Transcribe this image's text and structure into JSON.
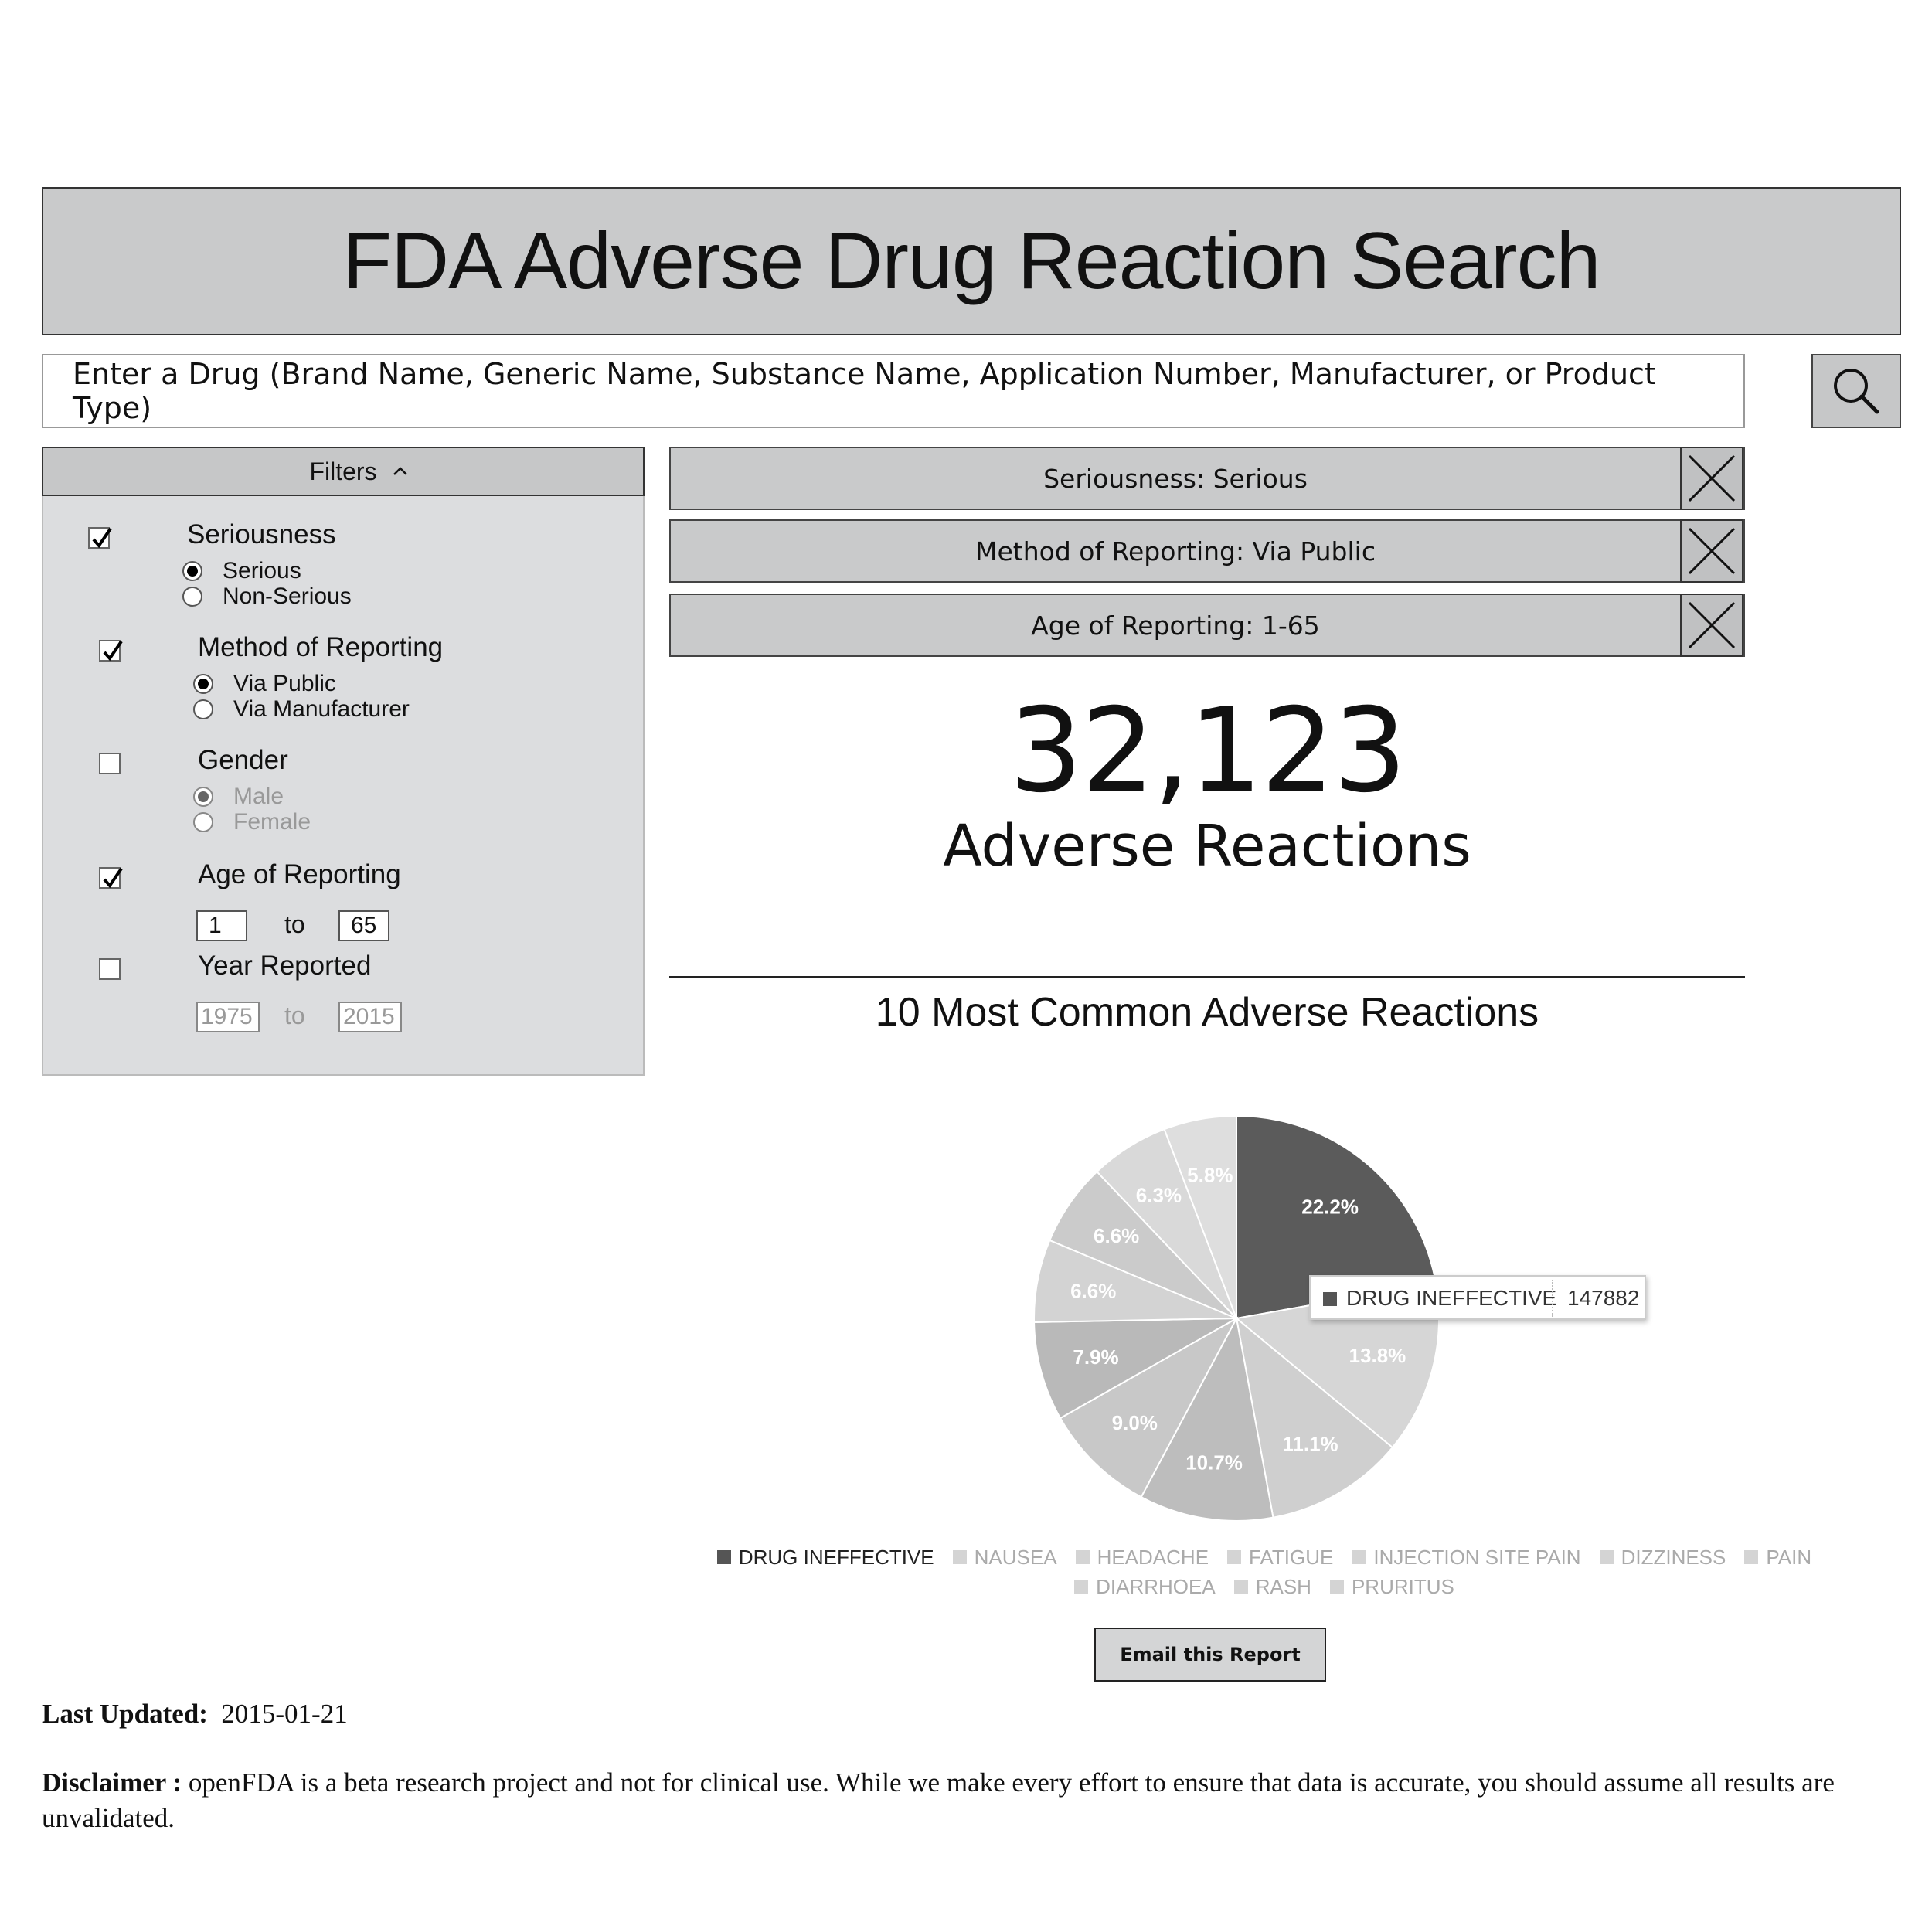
{
  "header": {
    "title": "FDA Adverse Drug Reaction Search"
  },
  "search": {
    "placeholder": "Enter a Drug (Brand Name, Generic Name, Substance Name, Application Number, Manufacturer, or Product Type)",
    "button_icon": "search-icon"
  },
  "filters": {
    "title": "Filters",
    "toggle_icon": "chevron-up-icon",
    "seriousness": {
      "label": "Seriousness",
      "checked": true,
      "options": [
        "Serious",
        "Non-Serious"
      ],
      "selected": "Serious"
    },
    "method": {
      "label": "Method of Reporting",
      "checked": true,
      "options": [
        "Via Public",
        "Via Manufacturer"
      ],
      "selected": "Via Public"
    },
    "gender": {
      "label": "Gender",
      "checked": false,
      "options": [
        "Male",
        "Female"
      ],
      "selected": "Male"
    },
    "age": {
      "label": "Age of Reporting",
      "checked": true,
      "from": "1",
      "to_label": "to",
      "to": "65"
    },
    "year": {
      "label": "Year Reported",
      "checked": false,
      "from": "1975",
      "to_label": "to",
      "to": "2015"
    }
  },
  "active_filters": [
    {
      "label": "Seriousness: Serious",
      "close_icon": "close-icon"
    },
    {
      "label": "Method of Reporting: Via Public",
      "close_icon": "close-icon"
    },
    {
      "label": "Age of Reporting: 1-65",
      "close_icon": "close-icon"
    }
  ],
  "summary": {
    "count": "32,123",
    "label": "Adverse Reactions"
  },
  "chart_data": {
    "type": "pie",
    "title": "10 Most Common Adverse Reactions",
    "categories": [
      "DRUG INEFFECTIVE",
      "NAUSEA",
      "HEADACHE",
      "FATIGUE",
      "INJECTION SITE PAIN",
      "DIZZINESS",
      "PAIN",
      "DIARRHOEA",
      "RASH",
      "PRURITUS"
    ],
    "values": [
      22.2,
      13.8,
      11.1,
      10.7,
      9.0,
      7.9,
      6.6,
      6.6,
      6.3,
      5.8
    ],
    "value_labels": [
      "22.2%",
      "13.8%",
      "11.1%",
      "10.7%",
      "9.0%",
      "7.9%",
      "6.6%",
      "6.6%",
      "6.3%",
      "5.8%"
    ],
    "colors": [
      "#5b5b5b",
      "#d6d6d6",
      "#cfcfcf",
      "#bdbdbd",
      "#c8c8c8",
      "#b9b9b9",
      "#d3d3d3",
      "#cbcbcb",
      "#d9d9d9",
      "#dedede"
    ],
    "highlighted": "DRUG INEFFECTIVE",
    "tooltip": {
      "name": "DRUG INEFFECTIVE",
      "value": "147882"
    },
    "legend_placement": "bottom"
  },
  "actions": {
    "email_label": "Email this Report"
  },
  "footer": {
    "updated_label": "Last Updated:",
    "updated_value": "2015-01-21",
    "disclaimer_label": "Disclaimer :",
    "disclaimer_text": "openFDA is a beta research project and not for clinical use. While we make every effort to ensure that data is accurate, you should assume all results are unvalidated."
  }
}
